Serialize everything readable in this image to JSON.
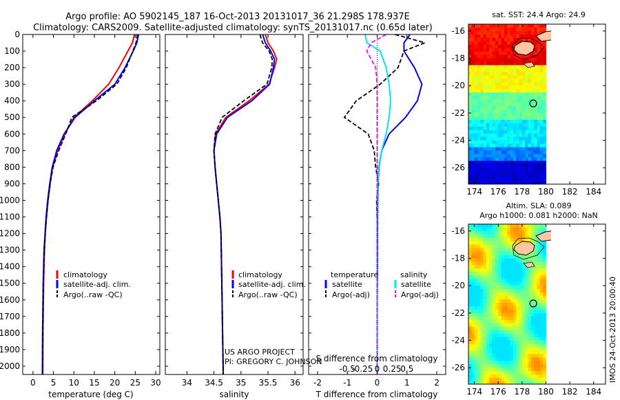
{
  "header": {
    "line1": "Argo profile: AO 5902145_187 16-Oct-2013 20131017_36 21.298S 178.937E",
    "line2": "Climatology: CARS2009. Satellite-adjusted climatology: synTS_20131017.nc (0.65d later)"
  },
  "colors": {
    "climatology": "#ff0000",
    "satellite": "#0000ff",
    "argo": "#000000",
    "satellite_salinity": "#00e5ff",
    "argo_salinity_adj": "#ff00ff"
  },
  "chart_data": [
    {
      "type": "line",
      "title": "",
      "xlabel": "temperature (deg C)",
      "ylabel": "",
      "xlim": [
        -2.5,
        31
      ],
      "ylim": [
        2050,
        0
      ],
      "x_ticks": [
        "0",
        "5",
        "10",
        "15",
        "20",
        "25",
        "30"
      ],
      "y_ticks": [
        "0",
        "100",
        "200",
        "300",
        "400",
        "500",
        "600",
        "700",
        "800",
        "900",
        "1000",
        "1100",
        "1200",
        "1300",
        "1400",
        "1500",
        "1600",
        "1700",
        "1800",
        "1900",
        "2000"
      ],
      "legend": [
        "climatology",
        "satellite-adj. clim.",
        "Argo(..raw -QC)"
      ],
      "series": [
        {
          "name": "climatology",
          "style": "solid",
          "color": "#ff0000",
          "x": [
            24.8,
            24.3,
            23.2,
            21,
            18.5,
            14.5,
            10,
            7.8,
            6,
            4.8,
            4.2,
            3.7,
            3.3,
            3,
            2.8,
            2.7,
            2.6,
            2.55,
            2.5,
            2.45,
            2.4
          ],
          "y": [
            0,
            50,
            100,
            200,
            300,
            400,
            500,
            600,
            700,
            800,
            900,
            1000,
            1100,
            1200,
            1300,
            1400,
            1500,
            1600,
            1700,
            1800,
            2050
          ]
        },
        {
          "name": "satellite-adj. clim.",
          "style": "solid",
          "color": "#0000ff",
          "x": [
            25.8,
            25.4,
            24.5,
            22.5,
            20,
            15,
            10.3,
            7.6,
            5.8,
            4.7,
            4.1,
            3.6,
            3.2,
            2.95,
            2.7,
            2.6,
            2.5,
            2.45,
            2.4,
            2.35,
            2.3
          ],
          "y": [
            0,
            50,
            100,
            200,
            300,
            400,
            500,
            600,
            700,
            800,
            900,
            1000,
            1100,
            1200,
            1300,
            1400,
            1500,
            1600,
            1700,
            1800,
            2050
          ]
        },
        {
          "name": "Argo(..raw -QC)",
          "style": "dashed",
          "color": "#000000",
          "x": [
            25.5,
            25.2,
            24.4,
            22.8,
            20.5,
            15.5,
            9.5,
            8,
            6.3,
            4.9,
            4.2,
            3.7,
            3.3,
            3,
            2.8,
            2.65,
            2.55,
            2.5,
            2.45,
            2.4,
            2.35
          ],
          "y": [
            0,
            50,
            100,
            200,
            300,
            400,
            500,
            600,
            700,
            800,
            900,
            1000,
            1100,
            1200,
            1300,
            1400,
            1500,
            1600,
            1700,
            1800,
            2050
          ]
        }
      ]
    },
    {
      "type": "line",
      "title": "",
      "xlabel": "salinity",
      "ylabel": "",
      "xlim": [
        33.6,
        36.15
      ],
      "ylim": [
        2050,
        0
      ],
      "x_ticks": [
        "34",
        "34.5",
        "35",
        "35.5",
        "36"
      ],
      "legend": [
        "climatology",
        "satellite-adj. clim.",
        "Argo(..raw -QC)"
      ],
      "annotation": [
        "US ARGO PROJECT",
        "PI: GREGORY C. JOHNSON"
      ],
      "series": [
        {
          "name": "climatology",
          "style": "solid",
          "color": "#ff0000",
          "x": [
            35.45,
            35.5,
            35.6,
            35.66,
            35.62,
            35.52,
            35.15,
            34.72,
            34.53,
            34.5,
            34.52,
            34.55,
            34.58,
            34.61,
            34.63,
            34.64,
            34.65,
            34.66,
            34.665,
            34.67,
            34.67
          ],
          "y": [
            0,
            50,
            100,
            150,
            200,
            300,
            400,
            500,
            600,
            700,
            800,
            900,
            1000,
            1100,
            1200,
            1400,
            1600,
            1800,
            1900,
            2000,
            2050
          ]
        },
        {
          "name": "satellite-adj. clim.",
          "style": "solid",
          "color": "#0000ff",
          "x": [
            35.4,
            35.45,
            35.55,
            35.62,
            35.6,
            35.53,
            35.2,
            34.75,
            34.55,
            34.5,
            34.52,
            34.55,
            34.58,
            34.61,
            34.63,
            34.64,
            34.65,
            34.66,
            34.665,
            34.67,
            34.67
          ],
          "y": [
            0,
            50,
            100,
            150,
            200,
            300,
            400,
            500,
            600,
            700,
            800,
            900,
            1000,
            1100,
            1200,
            1400,
            1600,
            1800,
            1900,
            2000,
            2050
          ]
        },
        {
          "name": "Argo(..raw -QC)",
          "style": "dashed",
          "color": "#000000",
          "x": [
            35.35,
            35.4,
            35.52,
            35.58,
            35.57,
            35.48,
            35.05,
            34.65,
            34.52,
            34.5,
            34.52,
            34.55,
            34.58,
            34.61,
            34.63,
            34.64,
            34.65,
            34.66,
            34.665,
            34.67,
            34.67
          ],
          "y": [
            0,
            50,
            100,
            150,
            200,
            300,
            400,
            500,
            600,
            700,
            800,
            900,
            1000,
            1100,
            1200,
            1400,
            1600,
            1800,
            1900,
            2000,
            2050
          ]
        }
      ]
    },
    {
      "type": "line",
      "title": "",
      "xlabel": "T difference from climatology",
      "xlabel2": "S difference from climatology",
      "ylabel": "",
      "xlim": [
        -2.3,
        2.3
      ],
      "ylim": [
        2050,
        0
      ],
      "x_ticks": [
        "-2",
        "-1",
        "0",
        "1",
        "2"
      ],
      "x_ticks_s": [
        "-0.5",
        "-0.25",
        "0",
        "0.25",
        "0.5"
      ],
      "legend_left": [
        "temperature",
        "satellite",
        "Argo(-adj)"
      ],
      "legend_right": [
        "salinity",
        "satellite",
        "Argo(-adj)"
      ],
      "series": [
        {
          "name": "temperature satellite",
          "style": "solid",
          "color": "#0000ff",
          "x": [
            1.1,
            0.9,
            0.9,
            1.25,
            1.5,
            1.35,
            0.95,
            0.4,
            0.15,
            0.06,
            0.03,
            0.02,
            0.01,
            0.01,
            0,
            0,
            0,
            0
          ],
          "y": [
            0,
            50,
            100,
            200,
            300,
            400,
            500,
            600,
            700,
            800,
            900,
            1000,
            1200,
            1400,
            1600,
            1800,
            2000,
            2050
          ]
        },
        {
          "name": "temperature Argo(-adj)",
          "style": "dashed",
          "color": "#000000",
          "x": [
            0.6,
            1.6,
            0.9,
            0.7,
            0.1,
            -0.7,
            -1.1,
            -0.3,
            -0.1,
            -0.05,
            0.05,
            -0.02,
            0.01,
            0,
            0,
            0,
            0,
            0
          ],
          "y": [
            0,
            50,
            100,
            200,
            300,
            400,
            500,
            600,
            700,
            800,
            900,
            1000,
            1200,
            1400,
            1600,
            1800,
            2000,
            2050
          ]
        },
        {
          "name": "salinity satellite",
          "style": "solid",
          "color": "#00e5ff",
          "x": [
            -0.4,
            -0.35,
            0.1,
            0.3,
            0.4,
            0.45,
            0.4,
            0.3,
            0.15,
            0.05,
            0.02,
            0.01,
            0,
            0,
            0,
            0,
            0,
            0
          ],
          "y": [
            0,
            50,
            100,
            200,
            300,
            400,
            500,
            600,
            700,
            800,
            900,
            1000,
            1200,
            1400,
            1600,
            1800,
            2000,
            2050
          ]
        },
        {
          "name": "salinity Argo(-adj)",
          "style": "dashed",
          "color": "#ff00ff",
          "x": [
            0.3,
            -0.2,
            -0.35,
            -0.05,
            0,
            0,
            0,
            0,
            0,
            0,
            0,
            0,
            0,
            0,
            0,
            0,
            0,
            0
          ],
          "y": [
            0,
            50,
            100,
            200,
            300,
            400,
            500,
            600,
            700,
            800,
            900,
            1000,
            1200,
            1400,
            1600,
            1800,
            2000,
            2050
          ]
        }
      ]
    },
    {
      "type": "heatmap",
      "title": "sat. SST: 24.4 Argo: 24.9",
      "xlim": [
        173.5,
        185
      ],
      "ylim": [
        -27.2,
        -15.5
      ],
      "x_ticks": [
        "174",
        "176",
        "178",
        "180",
        "182",
        "184"
      ],
      "y_ticks": [
        "-16",
        "-18",
        "-20",
        "-22",
        "-24",
        "-26"
      ],
      "data_x_max": 180,
      "marker": {
        "lon": 178.937,
        "lat": -21.298
      }
    },
    {
      "type": "heatmap",
      "title": "Altim. SLA: 0.089",
      "subtitle": "Argo h1000: 0.081 h2000: NaN",
      "xlim": [
        173.5,
        185
      ],
      "ylim": [
        -27.2,
        -15.5
      ],
      "x_ticks": [
        "174",
        "176",
        "178",
        "180",
        "182",
        "184"
      ],
      "y_ticks": [
        "-16",
        "-18",
        "-20",
        "-22",
        "-24",
        "-26"
      ],
      "data_x_max": 180,
      "marker": {
        "lon": 178.937,
        "lat": -21.298
      }
    }
  ],
  "side_label": "IMOS 24-Oct-2013 20:00:40"
}
